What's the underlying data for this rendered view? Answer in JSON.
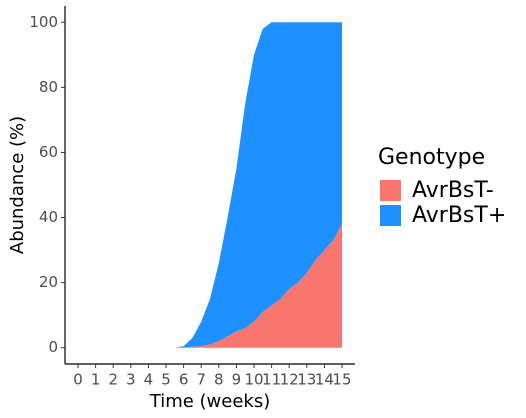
{
  "chart_data": {
    "type": "area",
    "stacked": true,
    "x_label": "Time (weeks)",
    "y_label": "Abundance (%)",
    "legend_title": "Genotype",
    "legend": "right",
    "x": [
      0,
      1,
      2,
      3,
      4,
      5,
      5.5,
      6,
      6.5,
      7,
      7.5,
      8,
      8.5,
      9,
      9.5,
      10,
      10.5,
      11,
      11.5,
      12,
      12.5,
      13,
      13.5,
      14,
      14.5,
      15
    ],
    "series": [
      {
        "name": "AvrBsT-",
        "color": "#f8766d",
        "values": [
          0,
          0,
          0,
          0,
          0,
          0,
          0,
          0.1,
          0.3,
          0.5,
          1,
          2,
          3.5,
          5,
          6,
          8,
          11,
          13,
          15,
          18,
          20,
          23,
          27,
          30,
          33,
          38
        ]
      },
      {
        "name": "AvrBsT+",
        "color": "#1e90ff",
        "values": [
          0,
          0,
          0,
          0,
          0,
          0,
          0,
          0.4,
          2.7,
          7.5,
          14,
          24,
          36.5,
          50,
          69,
          82,
          87,
          87,
          85,
          82,
          80,
          77,
          73,
          70,
          67,
          62
        ]
      }
    ],
    "xlim": [
      -0.74,
      15.74
    ],
    "xticks": [
      0,
      1,
      2,
      3,
      4,
      5,
      6,
      7,
      8,
      9,
      10,
      11,
      12,
      13,
      14,
      15
    ],
    "ylim": [
      -5,
      105
    ],
    "yticks": [
      0,
      20,
      40,
      60,
      80,
      100
    ]
  }
}
